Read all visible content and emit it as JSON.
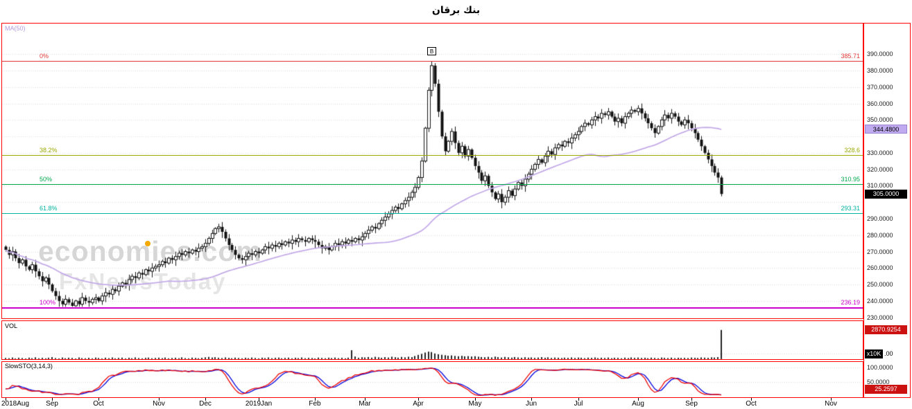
{
  "title": "بنك برقان",
  "watermark": {
    "line1": "economies.com",
    "line2": "FxNewsToday"
  },
  "main_panel": {
    "indicator_label": "MA(50)",
    "marker": "B",
    "ma_badge": "344.4800",
    "ma_badge_value": 344.48,
    "last_badge": "305.0000",
    "last_badge_value": 305.0,
    "y_axis": {
      "tick_min": 230,
      "tick_max": 390,
      "tick_step": 10,
      "hidden_ticks": [
        340,
        300
      ],
      "decimals": 4
    },
    "fib_levels": [
      {
        "pct": "0%",
        "value": 385.71,
        "label": "385.71",
        "color": "#e03838",
        "width": 1
      },
      {
        "pct": "38.2%",
        "value": 328.6,
        "label": "328.6",
        "color": "#9aa800",
        "width": 1
      },
      {
        "pct": "50%",
        "value": 310.95,
        "label": "310.95",
        "color": "#00a84c",
        "width": 1
      },
      {
        "pct": "61.8%",
        "value": 293.31,
        "label": "293.31",
        "color": "#00b4a0",
        "width": 1
      },
      {
        "pct": "100%",
        "value": 236.19,
        "label": "236.19",
        "color": "#cc00cc",
        "width": 2
      }
    ]
  },
  "volume_panel": {
    "label": "VOL",
    "badge": "2870.9254",
    "badge_value": 2870.9254,
    "scale_badge": "x10K",
    "baseline_label": ".00"
  },
  "sto_panel": {
    "label": "SlowSTO(3,14,3)",
    "badge": "25.2597",
    "badge_value": 25.2597,
    "ticks": [
      {
        "v": 100,
        "label": "100.0000"
      },
      {
        "v": 50,
        "label": "50.0000"
      }
    ]
  },
  "x_axis": {
    "months": [
      {
        "label": "2018Aug",
        "idx": 0
      },
      {
        "label": "Sep",
        "idx": 14
      },
      {
        "label": "Oct",
        "idx": 28
      },
      {
        "label": "Nov",
        "idx": 46
      },
      {
        "label": "Dec",
        "idx": 60
      },
      {
        "label": "2019Jan",
        "idx": 76
      },
      {
        "label": "Feb",
        "idx": 93
      },
      {
        "label": "Mar",
        "idx": 108
      },
      {
        "label": "Apr",
        "idx": 124
      },
      {
        "label": "May",
        "idx": 141
      },
      {
        "label": "Jun",
        "idx": 158
      },
      {
        "label": "Jul",
        "idx": 172
      },
      {
        "label": "Aug",
        "idx": 190
      },
      {
        "label": "Sep",
        "idx": 206
      },
      {
        "label": "Oct",
        "idx": 224
      },
      {
        "label": "Nov",
        "idx": 248
      }
    ]
  },
  "colors": {
    "border": "#ff0000",
    "candle": "#111111",
    "ma_line": "#c3aae8",
    "sto_k": "#ee0000",
    "sto_d": "#0000dd",
    "grid": "#dcdcdc"
  },
  "chart_data": [
    {
      "type": "candlestick",
      "title": "بنك برقان",
      "x_unit": "daily bars, Aug 2018 - Sep 2019",
      "ylim": [
        229,
        409
      ],
      "ma_period": 50,
      "ma_last": 344.48,
      "peak_high": 385.71,
      "peak_index": 128,
      "fib_retracement": {
        "0%": 385.71,
        "38.2%": 328.6,
        "50%": 310.95,
        "61.8%": 293.31,
        "100%": 236.19
      },
      "closes": [
        271,
        268,
        270,
        266,
        263,
        265,
        261,
        259,
        262,
        258,
        255,
        252,
        254,
        250,
        246,
        243,
        240,
        238,
        241,
        239,
        237,
        240,
        238,
        242,
        240,
        239,
        241,
        242,
        240,
        243,
        245,
        244,
        247,
        246,
        249,
        251,
        250,
        253,
        255,
        254,
        257,
        256,
        259,
        258,
        260,
        261,
        262,
        264,
        263,
        266,
        265,
        267,
        269,
        268,
        270,
        269,
        271,
        270,
        272,
        273,
        275,
        278,
        281,
        284,
        285,
        282,
        278,
        274,
        271,
        268,
        266,
        265,
        267,
        269,
        268,
        270,
        269,
        271,
        273,
        272,
        274,
        273,
        275,
        274,
        276,
        275,
        277,
        276,
        278,
        277,
        276,
        278,
        277,
        276,
        274,
        272,
        273,
        271,
        273,
        275,
        274,
        276,
        275,
        277,
        276,
        278,
        277,
        279,
        281,
        283,
        285,
        284,
        287,
        289,
        291,
        293,
        295,
        297,
        296,
        299,
        301,
        303,
        306,
        309,
        315,
        325,
        345,
        368,
        383,
        372,
        355,
        340,
        331,
        337,
        343,
        336,
        330,
        334,
        328,
        332,
        327,
        322,
        318,
        313,
        316,
        310,
        306,
        302,
        305,
        300,
        303,
        307,
        304,
        308,
        312,
        310,
        314,
        317,
        320,
        323,
        326,
        324,
        328,
        331,
        329,
        333,
        335,
        334,
        337,
        336,
        339,
        341,
        343,
        346,
        348,
        347,
        350,
        352,
        351,
        354,
        353,
        355,
        352,
        349,
        351,
        348,
        352,
        354,
        356,
        355,
        357,
        354,
        351,
        348,
        345,
        342,
        346,
        350,
        353,
        351,
        354,
        352,
        349,
        347,
        350,
        348,
        345,
        342,
        338,
        334,
        330,
        326,
        322,
        318,
        315,
        305
      ]
    },
    {
      "type": "bar",
      "name": "Volume",
      "scale": "x10K",
      "last": 2870.9254,
      "values": [
        120,
        95,
        160,
        80,
        140,
        110,
        70,
        150,
        100,
        180,
        90,
        130,
        85,
        145,
        200,
        110,
        75,
        160,
        95,
        140,
        120,
        60,
        170,
        105,
        90,
        135,
        80,
        155,
        115,
        70,
        145,
        100,
        165,
        85,
        125,
        150,
        75,
        140,
        95,
        170,
        110,
        80,
        130,
        155,
        90,
        120,
        145,
        100,
        160,
        85,
        115,
        140,
        95,
        175,
        105,
        80,
        150,
        125,
        90,
        135,
        180,
        220,
        160,
        190,
        140,
        110,
        170,
        130,
        95,
        150,
        115,
        85,
        140,
        100,
        160,
        120,
        80,
        145,
        110,
        170,
        95,
        135,
        155,
        90,
        125,
        150,
        85,
        140,
        105,
        165,
        95,
        130,
        115,
        75,
        155,
        120,
        90,
        145,
        110,
        160,
        100,
        135,
        85,
        150,
        880,
        260,
        140,
        190,
        170,
        210,
        150,
        230,
        180,
        140,
        200,
        160,
        240,
        190,
        150,
        220,
        180,
        240,
        200,
        310,
        420,
        520,
        650,
        740,
        700,
        560,
        480,
        430,
        390,
        340,
        370,
        320,
        290,
        330,
        280,
        300,
        260,
        290,
        240,
        210,
        190,
        230,
        170,
        250,
        200,
        160,
        220,
        180,
        150,
        210,
        170,
        140,
        190,
        150,
        170,
        130,
        160,
        200,
        140,
        180,
        120,
        160,
        140,
        110,
        150,
        130,
        170,
        120,
        160,
        140,
        100,
        150,
        130,
        170,
        110,
        140,
        120,
        160,
        100,
        140,
        130,
        90,
        150,
        110,
        170,
        130,
        160,
        120,
        140,
        100,
        150,
        120,
        90,
        160,
        130,
        110,
        150,
        100,
        140,
        120,
        130,
        110,
        160,
        140,
        120,
        170,
        150,
        130,
        180,
        160,
        200,
        2870.9254
      ]
    },
    {
      "type": "line",
      "name": "SlowSTO(3,14,3)",
      "series": [
        {
          "name": "%K",
          "color": "#ee0000"
        },
        {
          "name": "%D",
          "color": "#0000dd"
        }
      ],
      "range": [
        0,
        100
      ],
      "computed_from": "closes (stochastic 14,3,3)",
      "last": 25.2597
    }
  ]
}
